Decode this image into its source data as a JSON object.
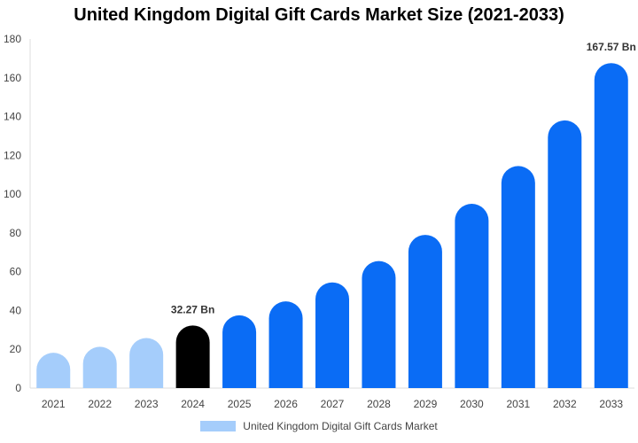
{
  "chart_data": {
    "type": "bar",
    "title": "United Kingdom Digital Gift Cards Market Size (2021-2033)",
    "categories": [
      "2021",
      "2022",
      "2023",
      "2024",
      "2025",
      "2026",
      "2027",
      "2028",
      "2029",
      "2030",
      "2031",
      "2032",
      "2033"
    ],
    "series": [
      {
        "name": "United Kingdom Digital Gift Cards Market",
        "values": [
          18.2,
          21.3,
          25.8,
          32.27,
          37.5,
          44.7,
          54.5,
          65.5,
          79.0,
          95.0,
          114.5,
          138.0,
          167.57
        ]
      }
    ],
    "data_labels": {
      "3": "32.27 Bn",
      "12": "167.57 Bn"
    },
    "ylim": [
      0,
      180
    ],
    "yticks": [
      0,
      20,
      40,
      60,
      80,
      100,
      120,
      140,
      160,
      180
    ],
    "grid": false,
    "legend_position": "bottom",
    "colors": {
      "historical": "#a5cdfb",
      "base_year": "#000000",
      "forecast": "#0a6cf5",
      "legend": "#a5cdfb"
    },
    "bar_color_groups": [
      "historical",
      "historical",
      "historical",
      "base_year",
      "forecast",
      "forecast",
      "forecast",
      "forecast",
      "forecast",
      "forecast",
      "forecast",
      "forecast",
      "forecast"
    ]
  }
}
